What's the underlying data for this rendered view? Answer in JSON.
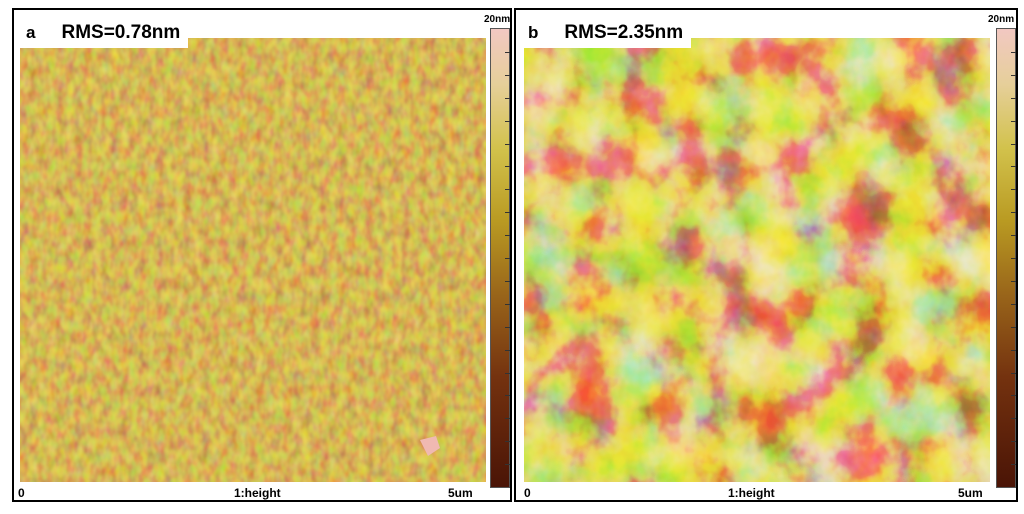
{
  "panels": [
    {
      "letter": "a",
      "rms": "RMS=0.78nm",
      "colorbar_max": "20nm",
      "axis_min": "0",
      "axis_center": "1:height",
      "axis_max": "5um"
    },
    {
      "letter": "b",
      "rms": "RMS=2.35nm",
      "colorbar_max": "20nm",
      "axis_min": "0",
      "axis_center": "1:height",
      "axis_max": "5um"
    }
  ],
  "colors": {
    "afm_dark": "#4a1406",
    "afm_mid": "#99651a",
    "afm_light": "#d2c24c",
    "afm_peak": "#f2c8c2"
  }
}
